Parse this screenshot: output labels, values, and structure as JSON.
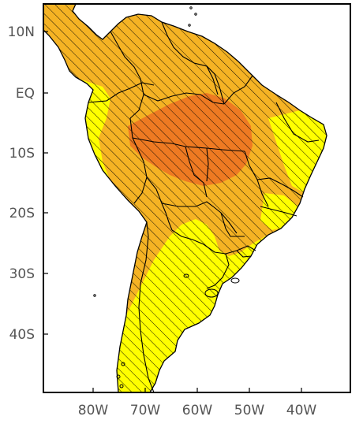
{
  "lat_labels": [
    "10N",
    "EQ",
    "10S",
    "20S",
    "30S",
    "40S"
  ],
  "lon_labels": [
    "80W",
    "70W",
    "60W",
    "50W",
    "40W"
  ],
  "colors": {
    "frame": "#000000",
    "ocean": "#ffffff",
    "level_low": "#ffff00",
    "level_mid": "#f5b324",
    "level_high": "#ee7a22",
    "hatch": "#000000",
    "borders": "#000000",
    "label": "#555555"
  },
  "hatching": "diagonal lines over entire land area"
}
